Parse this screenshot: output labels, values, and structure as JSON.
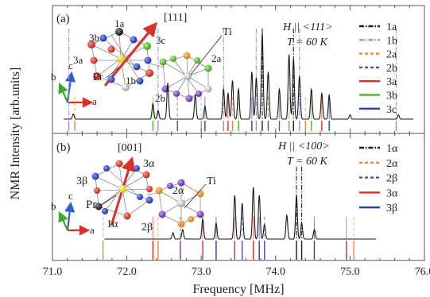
{
  "chart_data": [
    {
      "panel_label": "(a)",
      "type": "line",
      "field_label": "H || <111>",
      "temp_label": "T = 60 K",
      "crystal_labels": {
        "direction": "[111]",
        "rare_earth": "Pr",
        "transition_metal": "Ti",
        "sites": [
          "1a",
          "1b",
          "2a",
          "2b",
          "3a",
          "3b",
          "3c"
        ],
        "axes": [
          "a",
          "b",
          "c"
        ]
      },
      "legend": [
        {
          "name": "1a",
          "color": "#1a1a1a",
          "dash": "dashdot"
        },
        {
          "name": "1b",
          "color": "#9a90d8",
          "dash": "dashdot"
        },
        {
          "name": "2a",
          "color": "#e8893a",
          "dash": "dashed"
        },
        {
          "name": "2b",
          "color": "#6a3fa0",
          "dash": "dashed"
        },
        {
          "name": "3a",
          "color": "#d9302a",
          "dash": "solid"
        },
        {
          "name": "3b",
          "color": "#5cb02e",
          "dash": "solid"
        },
        {
          "name": "3c",
          "color": "#2c3f9a",
          "dash": "solid"
        }
      ],
      "experimental_peaks": [
        {
          "f": 71.28,
          "h": 0.06
        },
        {
          "f": 72.35,
          "h": 0.18
        },
        {
          "f": 72.42,
          "h": 0.1
        },
        {
          "f": 72.55,
          "h": 0.42
        },
        {
          "f": 72.92,
          "h": 0.28
        },
        {
          "f": 73.05,
          "h": 0.15
        },
        {
          "f": 73.3,
          "h": 0.35
        },
        {
          "f": 73.36,
          "h": 0.3
        },
        {
          "f": 73.42,
          "h": 0.45
        },
        {
          "f": 73.5,
          "h": 0.35
        },
        {
          "f": 73.68,
          "h": 0.55
        },
        {
          "f": 73.74,
          "h": 0.48
        },
        {
          "f": 73.82,
          "h": 1.0
        },
        {
          "f": 73.9,
          "h": 0.55
        },
        {
          "f": 74.05,
          "h": 0.35
        },
        {
          "f": 74.18,
          "h": 0.75
        },
        {
          "f": 74.24,
          "h": 0.7
        },
        {
          "f": 74.32,
          "h": 0.5
        },
        {
          "f": 74.48,
          "h": 0.35
        },
        {
          "f": 74.62,
          "h": 0.3
        },
        {
          "f": 74.72,
          "h": 0.28
        },
        {
          "f": 75.0,
          "h": 0.05
        },
        {
          "f": 75.65,
          "h": 0.05
        }
      ],
      "calculated_lines": [
        {
          "f": 71.22,
          "site": "1b"
        },
        {
          "f": 71.3,
          "site": "2a"
        },
        {
          "f": 72.35,
          "site": "3b"
        },
        {
          "f": 72.42,
          "site": "1b"
        },
        {
          "f": 72.68,
          "site": "2b"
        },
        {
          "f": 73.0,
          "site": "2a"
        },
        {
          "f": 73.05,
          "site": "3c"
        },
        {
          "f": 73.3,
          "site": "1b"
        },
        {
          "f": 73.36,
          "site": "3a"
        },
        {
          "f": 73.42,
          "site": "2a"
        },
        {
          "f": 73.5,
          "site": "3b"
        },
        {
          "f": 73.68,
          "site": "3c"
        },
        {
          "f": 73.74,
          "site": "1b"
        },
        {
          "f": 73.82,
          "site": "1a"
        },
        {
          "f": 73.9,
          "site": "2b"
        },
        {
          "f": 74.05,
          "site": "3a"
        },
        {
          "f": 74.18,
          "site": "3b"
        },
        {
          "f": 74.24,
          "site": "1a"
        },
        {
          "f": 74.32,
          "site": "1b"
        },
        {
          "f": 74.4,
          "site": "2a"
        },
        {
          "f": 74.48,
          "site": "3b"
        },
        {
          "f": 74.62,
          "site": "3a"
        },
        {
          "f": 74.72,
          "site": "3c"
        },
        {
          "f": 75.62,
          "site": "1b"
        }
      ]
    },
    {
      "panel_label": "(b)",
      "type": "line",
      "field_label": "H || <100>",
      "temp_label": "T = 60 K",
      "crystal_labels": {
        "direction": "[001]",
        "rare_earth": "Pr",
        "transition_metal": "Ti",
        "sites": [
          "1α",
          "2α",
          "2β",
          "3α",
          "3β"
        ],
        "axes": [
          "a",
          "b",
          "c"
        ]
      },
      "legend": [
        {
          "name": "1α",
          "color": "#1a1a1a",
          "dash": "dashdot"
        },
        {
          "name": "2α",
          "color": "#e8893a",
          "dash": "dashed"
        },
        {
          "name": "2β",
          "color": "#6a3fa0",
          "dash": "dashed"
        },
        {
          "name": "3α",
          "color": "#d9302a",
          "dash": "solid"
        },
        {
          "name": "3β",
          "color": "#2c3f9a",
          "dash": "solid"
        }
      ],
      "experimental_peaks": [
        {
          "f": 72.62,
          "h": 0.08
        },
        {
          "f": 72.75,
          "h": 0.12
        },
        {
          "f": 73.02,
          "h": 0.25
        },
        {
          "f": 73.2,
          "h": 0.2
        },
        {
          "f": 73.45,
          "h": 0.55
        },
        {
          "f": 73.55,
          "h": 0.45
        },
        {
          "f": 73.7,
          "h": 0.65
        },
        {
          "f": 73.78,
          "h": 0.55
        },
        {
          "f": 73.85,
          "h": 0.18
        },
        {
          "f": 74.15,
          "h": 0.3
        },
        {
          "f": 74.28,
          "h": 0.55
        },
        {
          "f": 74.35,
          "h": 0.2
        },
        {
          "f": 74.52,
          "h": 0.12
        }
      ],
      "calculated_lines": [
        {
          "f": 71.68,
          "site": "2α"
        },
        {
          "f": 72.35,
          "site": "3α"
        },
        {
          "f": 72.42,
          "site": "2α"
        },
        {
          "f": 72.72,
          "site": "2β"
        },
        {
          "f": 73.02,
          "site": "3α"
        },
        {
          "f": 73.2,
          "site": "3β"
        },
        {
          "f": 73.45,
          "site": "3α"
        },
        {
          "f": 73.55,
          "site": "2β"
        },
        {
          "f": 73.7,
          "site": "3α"
        },
        {
          "f": 73.78,
          "site": "3β"
        },
        {
          "f": 73.85,
          "site": "2β"
        },
        {
          "f": 74.28,
          "site": "1α"
        },
        {
          "f": 74.35,
          "site": "1α"
        },
        {
          "f": 74.52,
          "site": "3β"
        },
        {
          "f": 74.95,
          "site": "3α"
        },
        {
          "f": 75.05,
          "site": "2α"
        }
      ]
    }
  ],
  "axes": {
    "xlabel": "Frequency [MHz]",
    "ylabel": "NMR Intensity [arb.units]",
    "xlim": [
      71.0,
      76.0
    ],
    "xticks": [
      "71.0",
      "72.0",
      "73.0",
      "74.0",
      "75.0",
      "76.0"
    ],
    "grid": false
  }
}
